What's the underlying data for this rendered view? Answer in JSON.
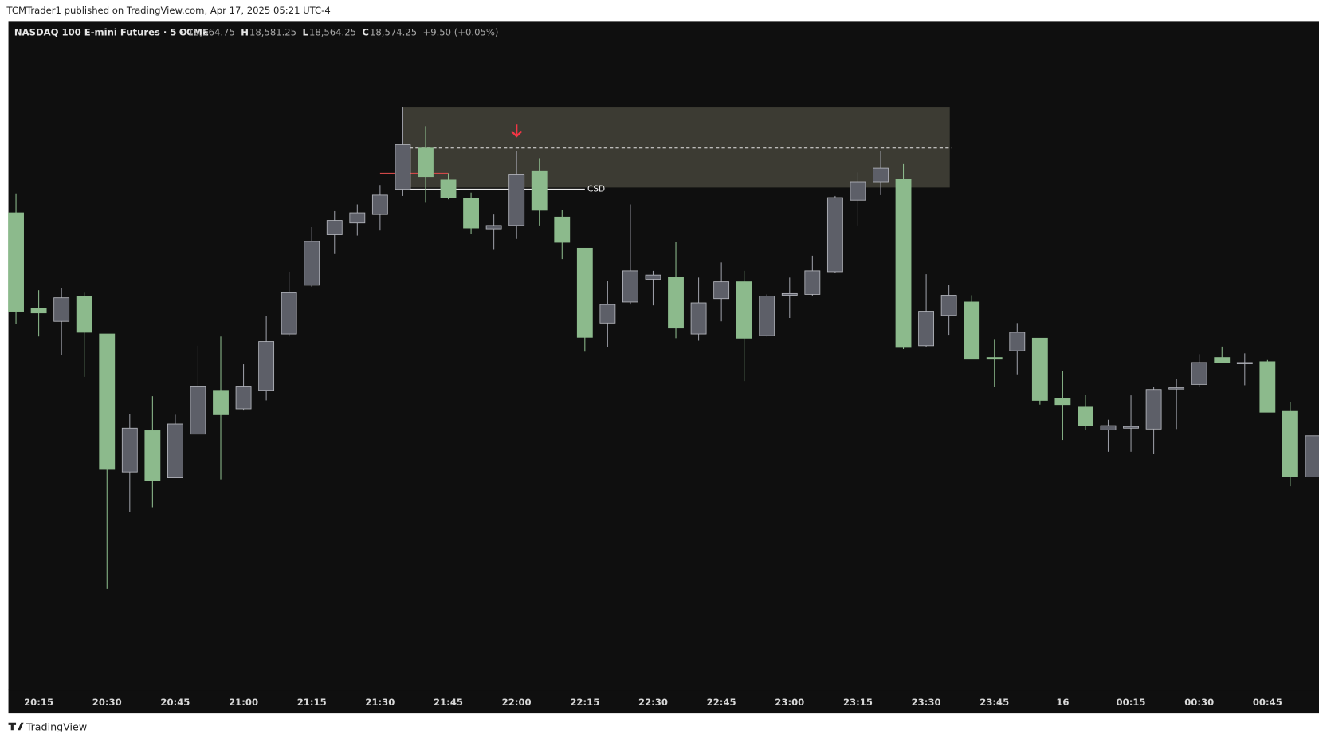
{
  "header": {
    "published": "TCMTrader1 published on TradingView.com, Apr 17, 2025 05:21 UTC-4"
  },
  "legend": {
    "symbol": "NASDAQ 100 E-mini Futures · 5 · CME",
    "ohlc": [
      {
        "key": "O",
        "value": "18,564.75"
      },
      {
        "key": "H",
        "value": "18,581.25"
      },
      {
        "key": "L",
        "value": "18,564.25"
      },
      {
        "key": "C",
        "value": "18,574.25"
      }
    ],
    "change": "+9.50 (+0.05%)"
  },
  "footer": {
    "brand": "TradingView"
  },
  "chart_data": {
    "type": "candlestick",
    "categories": [
      null,
      "20:15",
      null,
      null,
      "20:30",
      null,
      null,
      "20:45",
      null,
      null,
      "21:00",
      null,
      null,
      "21:15",
      null,
      null,
      "21:30",
      null,
      null,
      "21:45",
      null,
      null,
      "22:00",
      null,
      null,
      "22:15",
      null,
      null,
      "22:30",
      null,
      null,
      "22:45",
      null,
      null,
      "23:00",
      null,
      null,
      "23:15",
      null,
      null,
      "23:30",
      null,
      null,
      "23:45",
      null,
      null,
      "16",
      null,
      null,
      "00:15",
      null,
      null,
      "00:30",
      null,
      null,
      "00:45",
      null,
      null
    ],
    "open": [
      18743,
      18714.5,
      18710.75,
      18718.25,
      18707,
      18666,
      18678.25,
      18664.25,
      18677.25,
      18690.25,
      18684.75,
      18690.25,
      18707,
      18721.5,
      18736.5,
      18740,
      18742.5,
      18750,
      18762.25,
      18752.75,
      18747.25,
      18738.25,
      18739.25,
      18755.5,
      18741.75,
      18732.5,
      18710.25,
      18716.5,
      18723.25,
      18723.75,
      18707,
      18717.5,
      18722.5,
      18706.5,
      18718.5,
      18718.75,
      18725.5,
      18746.75,
      18752.25,
      18753,
      18703.5,
      18712.5,
      18716.5,
      18700,
      18702,
      18705.75,
      18687.75,
      18685.25,
      18678.5,
      18679,
      18678.75,
      18690.75,
      18692,
      18700,
      18698.25,
      18698.75,
      18684,
      18664.5
    ],
    "high": [
      18748.75,
      18720,
      18720.75,
      18719.25,
      18707,
      18683.25,
      18688.5,
      18683,
      18703.5,
      18706.25,
      18698,
      18712.25,
      18725.5,
      18738.75,
      18743.5,
      18745.5,
      18751.25,
      18774.5,
      18768.75,
      18754.75,
      18749,
      18742.5,
      18761.25,
      18759.25,
      18743.75,
      18732.5,
      18722.75,
      18745.5,
      18725.75,
      18734.25,
      18723.75,
      18728.25,
      18725.75,
      18718.75,
      18723.75,
      18730.25,
      18748,
      18755,
      18761.25,
      18757.5,
      18724.75,
      18721.5,
      18718.5,
      18705.5,
      18710.25,
      18705.75,
      18696,
      18689,
      18681.5,
      18688.75,
      18691.25,
      18693.75,
      18701,
      18703.25,
      18701.25,
      18699.25,
      18686.75,
      18676.75
    ],
    "low": [
      18710,
      18706.25,
      18700.75,
      18694.25,
      18631.25,
      18654,
      18655.5,
      18664.25,
      18677.25,
      18663.75,
      18684.25,
      18687.25,
      18706.25,
      18721,
      18730.75,
      18736.25,
      18737.75,
      18748,
      18746,
      18747,
      18736.75,
      18732,
      18735.25,
      18739.25,
      18729.25,
      18701.75,
      18703,
      18715.75,
      18715.5,
      18705.75,
      18705,
      18710.75,
      18693,
      18706.25,
      18711.75,
      18718.25,
      18725.25,
      18739.25,
      18748.25,
      18702.5,
      18703,
      18706.75,
      18699.5,
      18691.25,
      18695,
      18686,
      18675.5,
      18678.5,
      18672,
      18672,
      18671.25,
      18678.75,
      18691.25,
      18698.25,
      18691.75,
      18683.75,
      18661.75,
      18664.5
    ],
    "close": [
      18713.75,
      18713.25,
      18717.75,
      18707.5,
      18666.75,
      18679,
      18663.5,
      18680.25,
      18691.5,
      18683,
      18691.5,
      18704.75,
      18719.25,
      18734.5,
      18740.75,
      18743,
      18748.25,
      18763.25,
      18753.75,
      18747.5,
      18738.5,
      18739.25,
      18754.5,
      18743.75,
      18734.25,
      18706,
      18715.75,
      18725.75,
      18724.5,
      18708.75,
      18716.25,
      18722.5,
      18705.75,
      18718.25,
      18719,
      18725.75,
      18747.5,
      18752.25,
      18756.25,
      18703,
      18713.75,
      18718.5,
      18699.5,
      18699.5,
      18707.5,
      18687.25,
      18686,
      18679.75,
      18679.75,
      18679.5,
      18690.5,
      18691,
      18698.5,
      18698.5,
      18698.5,
      18683.75,
      18664.5,
      18676.75
    ],
    "up_color": "#5d5f68",
    "down_color": "#8cba8c",
    "ylim": [
      18601.25,
      18800
    ],
    "zone": {
      "high": 18774.5,
      "low": 18750.5,
      "color": "#3c3b33"
    },
    "dashed_level": 18762.25,
    "csd_level": 18750,
    "red_level": 18754.75,
    "annotation": "CSD"
  }
}
